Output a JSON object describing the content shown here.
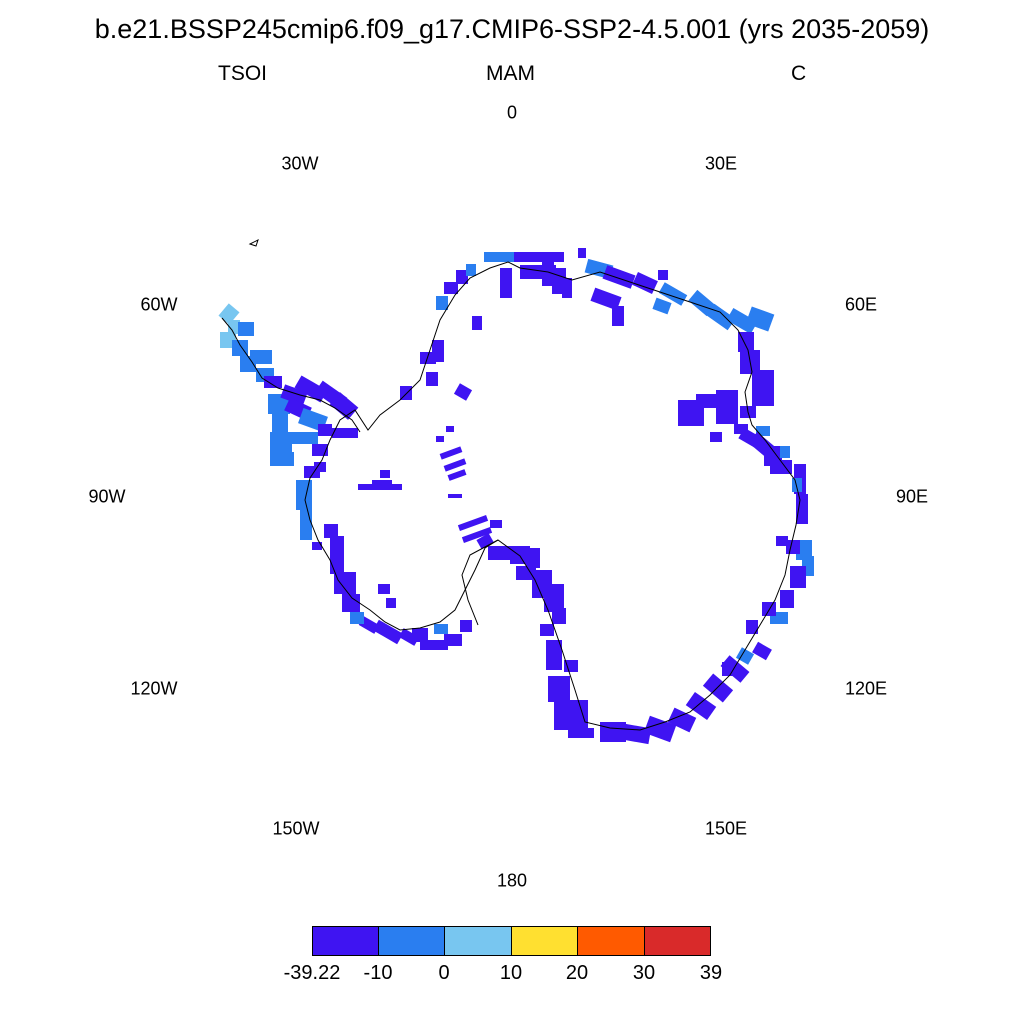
{
  "title": "b.e21.BSSP245cmip6.f09_g17.CMIP6-SSP2-4.5.001 (yrs 2035-2059)",
  "subtitle_left": "TSOI",
  "subtitle_center": "MAM",
  "subtitle_right": "C",
  "longitude_labels": {
    "n0": "0",
    "n30e": "30E",
    "n60e": "60E",
    "n90e": "90E",
    "n120e": "120E",
    "n150e": "150E",
    "n180": "180",
    "n150w": "150W",
    "n120w": "120W",
    "n90w": "90W",
    "n60w": "60W",
    "n30w": "30W"
  },
  "projection": "south polar stereographic",
  "colorbar": {
    "colors": [
      "#3f14f2",
      "#2a7ef0",
      "#78c6f0",
      "#ffe030",
      "#ff5a00",
      "#d92a2a"
    ],
    "ticks": [
      "-39.22",
      "-10",
      "0",
      "10",
      "20",
      "30",
      "39"
    ]
  },
  "colors": {
    "deep_blue": "#3f14f2",
    "mid_blue": "#2a7ef0",
    "light_blue": "#78c6f0",
    "coastline": "#000000"
  }
}
